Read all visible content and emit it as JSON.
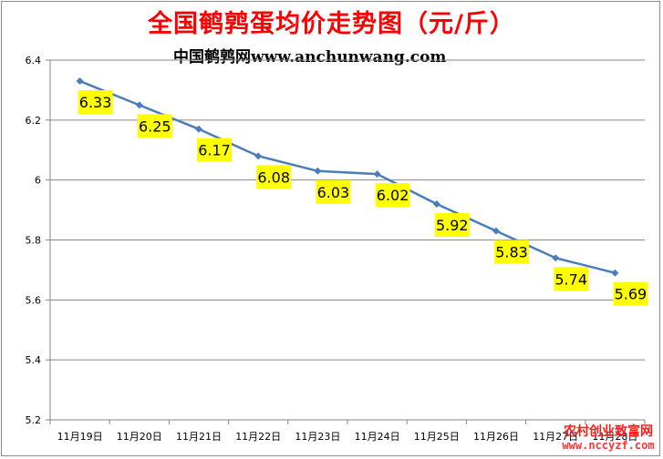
{
  "chart_data": {
    "type": "line",
    "title": "全国鹌鹑蛋均价走势图（元/斤）",
    "subtitle": "中国鹌鹑网www.anchunwang.com",
    "categories": [
      "11月19日",
      "11月20日",
      "11月21日",
      "11月22日",
      "11月23日",
      "11月24日",
      "11月25日",
      "11月26日",
      "11月27日",
      "11月28日"
    ],
    "series": [
      {
        "values": [
          6.33,
          6.25,
          6.17,
          6.08,
          6.03,
          6.02,
          5.92,
          5.83,
          5.74,
          5.69
        ]
      }
    ],
    "ylim": [
      5.2,
      6.4
    ],
    "yticks": [
      "5.2",
      "5.4",
      "5.6",
      "5.8",
      "6",
      "6.2",
      "6.4"
    ],
    "data_labels": [
      "6.33",
      "6.25",
      "6.17",
      "6.08",
      "6.03",
      "6.02",
      "5.92",
      "5.83",
      "5.74",
      "5.69"
    ],
    "grid": true,
    "legend": "none",
    "colors": {
      "line": "#4a7ebb",
      "label_bg": "#ffff00",
      "title": "#ff0000",
      "grid": "#868686"
    }
  },
  "watermark": {
    "line1": "农村创业致富网",
    "line2": "www.nccyzf.com"
  }
}
